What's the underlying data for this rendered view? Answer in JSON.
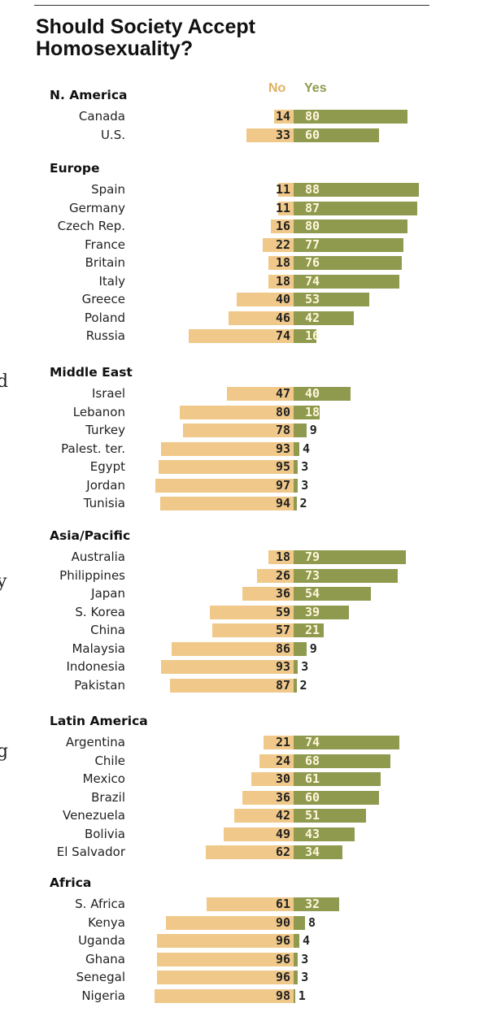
{
  "chart_data": {
    "type": "bar",
    "orientation": "horizontal-diverging",
    "title": "Should Society Accept\nHomosexuality?",
    "legend": {
      "no": "No",
      "yes": "Yes"
    },
    "colors": {
      "no": "#f0c98a",
      "yes": "#8f9a4f",
      "legend_no": "#e0b060"
    },
    "regions": [
      {
        "name": "N. America",
        "rows": [
          {
            "country": "Canada",
            "no": 14,
            "yes": 80
          },
          {
            "country": "U.S.",
            "no": 33,
            "yes": 60
          }
        ]
      },
      {
        "name": "Europe",
        "rows": [
          {
            "country": "Spain",
            "no": 11,
            "yes": 88
          },
          {
            "country": "Germany",
            "no": 11,
            "yes": 87
          },
          {
            "country": "Czech Rep.",
            "no": 16,
            "yes": 80
          },
          {
            "country": "France",
            "no": 22,
            "yes": 77
          },
          {
            "country": "Britain",
            "no": 18,
            "yes": 76
          },
          {
            "country": "Italy",
            "no": 18,
            "yes": 74
          },
          {
            "country": "Greece",
            "no": 40,
            "yes": 53
          },
          {
            "country": "Poland",
            "no": 46,
            "yes": 42
          },
          {
            "country": "Russia",
            "no": 74,
            "yes": 16
          }
        ]
      },
      {
        "name": "Middle East",
        "rows": [
          {
            "country": "Israel",
            "no": 47,
            "yes": 40
          },
          {
            "country": "Lebanon",
            "no": 80,
            "yes": 18
          },
          {
            "country": "Turkey",
            "no": 78,
            "yes": 9
          },
          {
            "country": "Palest. ter.",
            "no": 93,
            "yes": 4
          },
          {
            "country": "Egypt",
            "no": 95,
            "yes": 3
          },
          {
            "country": "Jordan",
            "no": 97,
            "yes": 3
          },
          {
            "country": "Tunisia",
            "no": 94,
            "yes": 2
          }
        ]
      },
      {
        "name": "Asia/Pacific",
        "rows": [
          {
            "country": "Australia",
            "no": 18,
            "yes": 79
          },
          {
            "country": "Philippines",
            "no": 26,
            "yes": 73
          },
          {
            "country": "Japan",
            "no": 36,
            "yes": 54
          },
          {
            "country": "S. Korea",
            "no": 59,
            "yes": 39
          },
          {
            "country": "China",
            "no": 57,
            "yes": 21
          },
          {
            "country": "Malaysia",
            "no": 86,
            "yes": 9
          },
          {
            "country": "Indonesia",
            "no": 93,
            "yes": 3
          },
          {
            "country": "Pakistan",
            "no": 87,
            "yes": 2
          }
        ]
      },
      {
        "name": "Latin America",
        "rows": [
          {
            "country": "Argentina",
            "no": 21,
            "yes": 74
          },
          {
            "country": "Chile",
            "no": 24,
            "yes": 68
          },
          {
            "country": "Mexico",
            "no": 30,
            "yes": 61
          },
          {
            "country": "Brazil",
            "no": 36,
            "yes": 60
          },
          {
            "country": "Venezuela",
            "no": 42,
            "yes": 51
          },
          {
            "country": "Bolivia",
            "no": 49,
            "yes": 43
          },
          {
            "country": "El Salvador",
            "no": 62,
            "yes": 34
          }
        ]
      },
      {
        "name": "Africa",
        "rows": [
          {
            "country": "S. Africa",
            "no": 61,
            "yes": 32
          },
          {
            "country": "Kenya",
            "no": 90,
            "yes": 8
          },
          {
            "country": "Uganda",
            "no": 96,
            "yes": 4
          },
          {
            "country": "Ghana",
            "no": 96,
            "yes": 3
          },
          {
            "country": "Senegal",
            "no": 96,
            "yes": 3
          },
          {
            "country": "Nigeria",
            "no": 98,
            "yes": 1
          }
        ]
      }
    ]
  },
  "edge_fragments": [
    "d",
    "y",
    "g"
  ]
}
